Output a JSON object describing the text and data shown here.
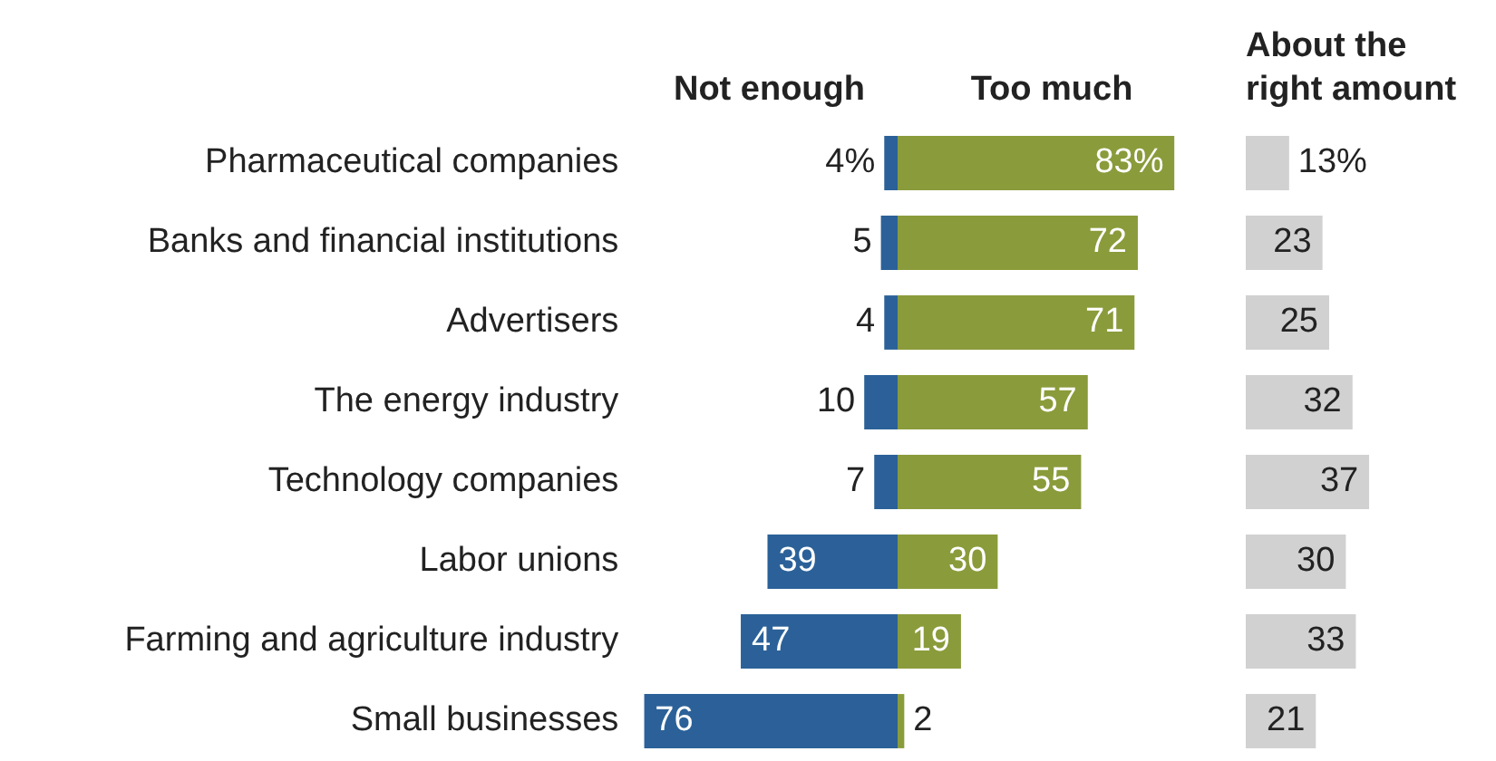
{
  "chart_data": [
    {
      "type": "bar",
      "orientation": "horizontal",
      "title": "Not enough",
      "categories": [
        "Pharmaceutical companies",
        "Banks and financial institutions",
        "Advertisers",
        "The energy industry",
        "Technology companies",
        "Labor unions",
        "Farming and agriculture industry",
        "Small businesses"
      ],
      "values": [
        4,
        5,
        4,
        10,
        7,
        39,
        47,
        76
      ],
      "value_labels": [
        "4%",
        "5",
        "4",
        "10",
        "7",
        "39",
        "47",
        "76"
      ],
      "color": "#2b6198",
      "tick_labels": "y"
    },
    {
      "type": "bar",
      "orientation": "horizontal",
      "title": "Too much",
      "values": [
        83,
        72,
        71,
        57,
        55,
        30,
        19,
        2
      ],
      "value_labels": [
        "83%",
        "72",
        "71",
        "57",
        "55",
        "30",
        "19",
        "2"
      ],
      "color": "#8a9b3b",
      "tick_labels": false
    },
    {
      "type": "bar",
      "orientation": "horizontal",
      "title": "About the right amount",
      "values": [
        13,
        23,
        25,
        32,
        37,
        30,
        33,
        21
      ],
      "value_labels": [
        "13%",
        "23",
        "25",
        "32",
        "37",
        "30",
        "33",
        "21"
      ],
      "color": "#d1d1d1",
      "tick_labels": false
    }
  ]
}
